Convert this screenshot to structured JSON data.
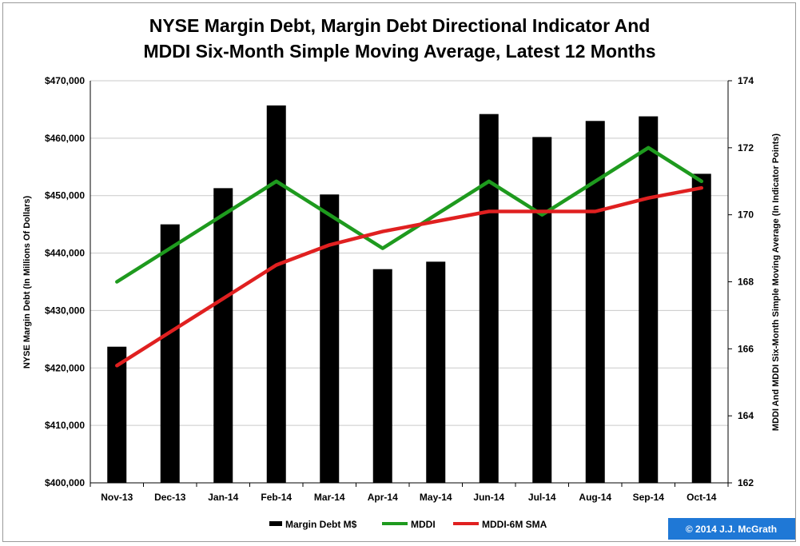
{
  "chart_data": {
    "type": "bar+line",
    "title_lines": [
      "NYSE Margin Debt, Margin Debt Directional Indicator And",
      "MDDI Six-Month Simple Moving Average, Latest 12 Months"
    ],
    "categories": [
      "Nov-13",
      "Dec-13",
      "Jan-14",
      "Feb-14",
      "Mar-14",
      "Apr-14",
      "May-14",
      "Jun-14",
      "Jul-14",
      "Aug-14",
      "Sep-14",
      "Oct-14"
    ],
    "ylabel_left": "NYSE Margin Debt (In Millions Of Dollars)",
    "ylabel_right": "MDDI And MDDI Six-Month Simple Moving Average (In Indicator Points)",
    "ylim_left": [
      400000,
      470000
    ],
    "yticks_left": [
      "$400,000",
      "$410,000",
      "$420,000",
      "$430,000",
      "$440,000",
      "$450,000",
      "$460,000",
      "$470,000"
    ],
    "ylim_right": [
      162,
      174
    ],
    "yticks_right": [
      "162",
      "164",
      "166",
      "168",
      "170",
      "172",
      "174"
    ],
    "grid": true,
    "legend_position": "bottom",
    "series": [
      {
        "name": "Margin Debt M$",
        "axis": "left",
        "kind": "bar",
        "color": "#000000",
        "values": [
          423700,
          445000,
          451300,
          465700,
          450200,
          437200,
          438500,
          464200,
          460200,
          463000,
          463800,
          453800
        ]
      },
      {
        "name": "MDDI",
        "axis": "right",
        "kind": "line",
        "color": "#1e9a1e",
        "values": [
          168.0,
          169.0,
          170.0,
          171.0,
          170.0,
          169.0,
          170.0,
          171.0,
          170.0,
          171.0,
          172.0,
          171.0
        ]
      },
      {
        "name": "MDDI-6M SMA",
        "axis": "right",
        "kind": "line",
        "color": "#e02020",
        "values": [
          165.5,
          166.5,
          167.5,
          168.5,
          169.1,
          169.5,
          169.8,
          170.1,
          170.1,
          170.1,
          170.5,
          170.8
        ]
      }
    ],
    "credit": "© 2014 J.J. McGrath",
    "credit_color": "#1f78d6"
  }
}
